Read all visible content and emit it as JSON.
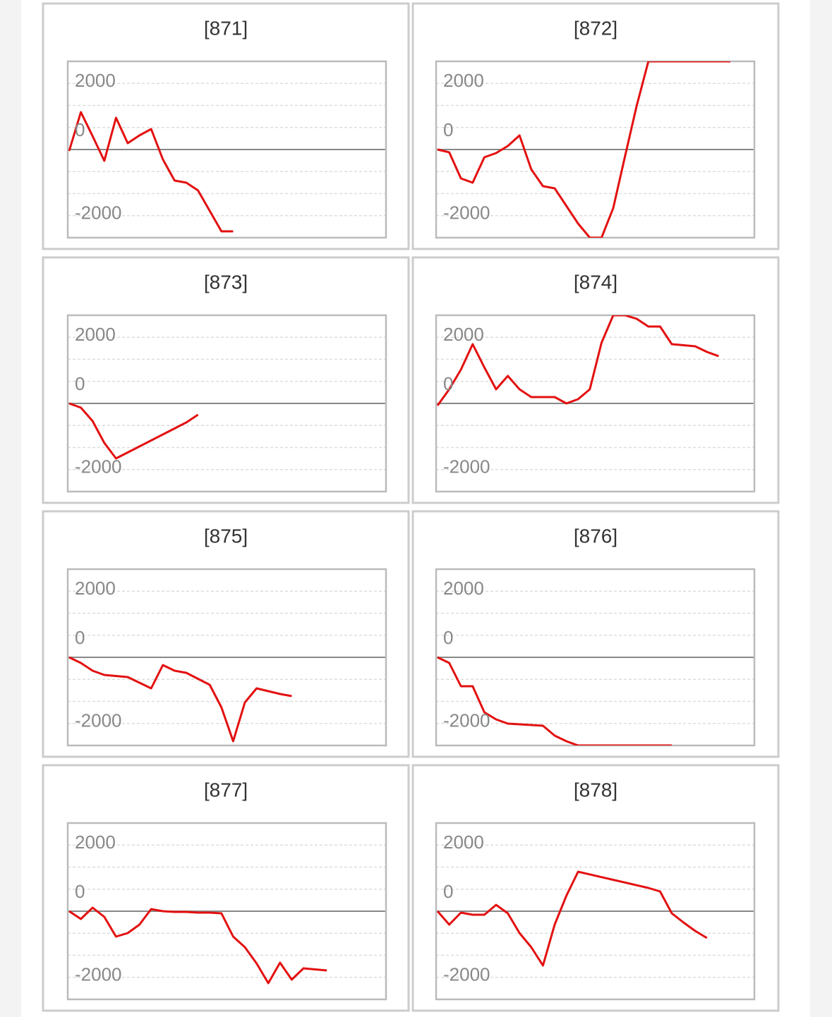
{
  "chart_data": [
    {
      "type": "line",
      "title": "[871]",
      "color": "#e31010",
      "ylim": [
        -2667,
        2667
      ],
      "yticks": [
        -2000,
        0,
        2000
      ],
      "values": [
        -43,
        1131,
        405,
        -341,
        960,
        192,
        427,
        619,
        -299,
        -939,
        -1003,
        -1238,
        -1857,
        -2475,
        -2475
      ]
    },
    {
      "type": "line",
      "title": "[872]",
      "color": "#e31010",
      "ylim": [
        -2667,
        2667
      ],
      "yticks": [
        -2000,
        0,
        2000
      ],
      "values": [
        0,
        -85,
        -875,
        -1003,
        -235,
        -107,
        107,
        427,
        -598,
        -1110,
        -1174,
        -1707,
        -2241,
        -2667,
        -2667,
        -1771,
        -213,
        1323,
        2667,
        2667,
        2667,
        2667,
        2667,
        2667,
        2667,
        2667
      ]
    },
    {
      "type": "line",
      "title": "[873]",
      "color": "#e31010",
      "ylim": [
        -2667,
        2667
      ],
      "yticks": [
        -2000,
        0,
        2000
      ],
      "values": [
        0,
        -128,
        -534,
        -1195,
        -1665,
        -1483,
        -1302,
        -1120,
        -939,
        -758,
        -576,
        -341
      ]
    },
    {
      "type": "line",
      "title": "[874]",
      "color": "#e31010",
      "ylim": [
        -2667,
        2667
      ],
      "yticks": [
        -2000,
        0,
        2000
      ],
      "values": [
        -64,
        427,
        1024,
        1793,
        1088,
        427,
        832,
        427,
        192,
        192,
        192,
        0,
        128,
        427,
        1835,
        2667,
        2667,
        2561,
        2326,
        2326,
        1793,
        1761,
        1729,
        1558,
        1430
      ]
    },
    {
      "type": "line",
      "title": "[875]",
      "color": "#e31010",
      "ylim": [
        -2667,
        2667
      ],
      "yticks": [
        -2000,
        0,
        2000
      ],
      "values": [
        0,
        -171,
        -405,
        -534,
        -566,
        -598,
        -768,
        -939,
        -235,
        -405,
        -470,
        -651,
        -832,
        -1515,
        -2539,
        -1366,
        -939,
        -1024,
        -1110,
        -1174
      ]
    },
    {
      "type": "line",
      "title": "[876]",
      "color": "#e31010",
      "ylim": [
        -2667,
        2667
      ],
      "yticks": [
        -2000,
        0,
        2000
      ],
      "values": [
        0,
        -171,
        -875,
        -875,
        -1665,
        -1878,
        -2006,
        -2027,
        -2049,
        -2070,
        -2369,
        -2539,
        -2667,
        -2667,
        -2667,
        -2667,
        -2667,
        -2667,
        -2667,
        -2667,
        -2667
      ]
    },
    {
      "type": "line",
      "title": "[877]",
      "color": "#e31010",
      "ylim": [
        -2667,
        2667
      ],
      "yticks": [
        -2000,
        0,
        2000
      ],
      "values": [
        0,
        -235,
        107,
        -171,
        -768,
        -662,
        -405,
        64,
        0,
        -21,
        -21,
        -43,
        -43,
        -64,
        -768,
        -1088,
        -1579,
        -2177,
        -1558,
        -2070,
        -1729,
        -1761,
        -1793
      ]
    },
    {
      "type": "line",
      "title": "[878]",
      "color": "#e31010",
      "ylim": [
        -2667,
        2667
      ],
      "yticks": [
        -2000,
        0,
        2000
      ],
      "values": [
        0,
        -405,
        -43,
        -107,
        -107,
        192,
        -64,
        -662,
        -1088,
        -1643,
        -405,
        469,
        1195,
        1114,
        1031,
        950,
        869,
        786,
        704,
        598,
        -64,
        -341,
        -598,
        -811
      ]
    }
  ]
}
